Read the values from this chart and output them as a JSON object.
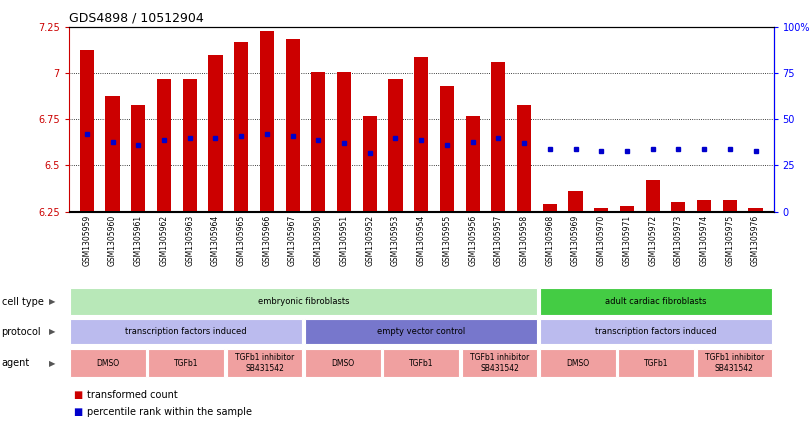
{
  "title": "GDS4898 / 10512904",
  "samples": [
    "GSM1305959",
    "GSM1305960",
    "GSM1305961",
    "GSM1305962",
    "GSM1305963",
    "GSM1305964",
    "GSM1305965",
    "GSM1305966",
    "GSM1305967",
    "GSM1305950",
    "GSM1305951",
    "GSM1305952",
    "GSM1305953",
    "GSM1305954",
    "GSM1305955",
    "GSM1305956",
    "GSM1305957",
    "GSM1305958",
    "GSM1305968",
    "GSM1305969",
    "GSM1305970",
    "GSM1305971",
    "GSM1305972",
    "GSM1305973",
    "GSM1305974",
    "GSM1305975",
    "GSM1305976"
  ],
  "bar_heights": [
    7.13,
    6.88,
    6.83,
    6.97,
    6.97,
    7.1,
    7.17,
    7.23,
    7.19,
    7.01,
    7.01,
    6.77,
    6.97,
    7.09,
    6.93,
    6.77,
    7.06,
    6.83,
    6.29,
    6.36,
    6.27,
    6.28,
    6.42,
    6.3,
    6.31,
    6.31,
    6.27
  ],
  "percentile_vals": [
    6.67,
    6.63,
    6.61,
    6.64,
    6.65,
    6.65,
    6.66,
    6.67,
    6.66,
    6.64,
    6.62,
    6.57,
    6.65,
    6.64,
    6.61,
    6.63,
    6.65,
    6.62,
    6.59,
    6.59,
    6.58,
    6.58,
    6.59,
    6.59,
    6.59,
    6.59,
    6.58
  ],
  "bar_color": "#cc0000",
  "percentile_color": "#0000cc",
  "ymin": 6.25,
  "ymax": 7.25,
  "yticks": [
    6.25,
    6.5,
    6.75,
    7.0,
    7.25
  ],
  "ytick_labels": [
    "6.25",
    "6.5",
    "6.75",
    "7",
    "7.25"
  ],
  "right_yticks": [
    0,
    25,
    50,
    75,
    100
  ],
  "right_ytick_labels": [
    "0",
    "25",
    "50",
    "75",
    "100%"
  ],
  "grid_vals": [
    6.5,
    6.75,
    7.0
  ],
  "cell_type_groups": [
    {
      "label": "embryonic fibroblasts",
      "start": 0,
      "end": 17,
      "color": "#b8e8b8"
    },
    {
      "label": "adult cardiac fibroblasts",
      "start": 18,
      "end": 26,
      "color": "#44cc44"
    }
  ],
  "protocol_groups": [
    {
      "label": "transcription factors induced",
      "start": 0,
      "end": 8,
      "color": "#bbbbee"
    },
    {
      "label": "empty vector control",
      "start": 9,
      "end": 17,
      "color": "#7777cc"
    },
    {
      "label": "transcription factors induced",
      "start": 18,
      "end": 26,
      "color": "#bbbbee"
    }
  ],
  "agent_groups": [
    {
      "label": "DMSO",
      "start": 0,
      "end": 2,
      "color": "#f0a0a0"
    },
    {
      "label": "TGFb1",
      "start": 3,
      "end": 5,
      "color": "#f0a0a0"
    },
    {
      "label": "TGFb1 inhibitor\nSB431542",
      "start": 6,
      "end": 8,
      "color": "#f0a0a0"
    },
    {
      "label": "DMSO",
      "start": 9,
      "end": 11,
      "color": "#f0a0a0"
    },
    {
      "label": "TGFb1",
      "start": 12,
      "end": 14,
      "color": "#f0a0a0"
    },
    {
      "label": "TGFb1 inhibitor\nSB431542",
      "start": 15,
      "end": 17,
      "color": "#f0a0a0"
    },
    {
      "label": "DMSO",
      "start": 18,
      "end": 20,
      "color": "#f0a0a0"
    },
    {
      "label": "TGFb1",
      "start": 21,
      "end": 23,
      "color": "#f0a0a0"
    },
    {
      "label": "TGFb1 inhibitor\nSB431542",
      "start": 24,
      "end": 26,
      "color": "#f0a0a0"
    }
  ],
  "legend_items": [
    {
      "label": "transformed count",
      "color": "#cc0000"
    },
    {
      "label": "percentile rank within the sample",
      "color": "#0000cc"
    }
  ],
  "xtick_bg_color": "#cccccc",
  "fig_bg": "#ffffff"
}
